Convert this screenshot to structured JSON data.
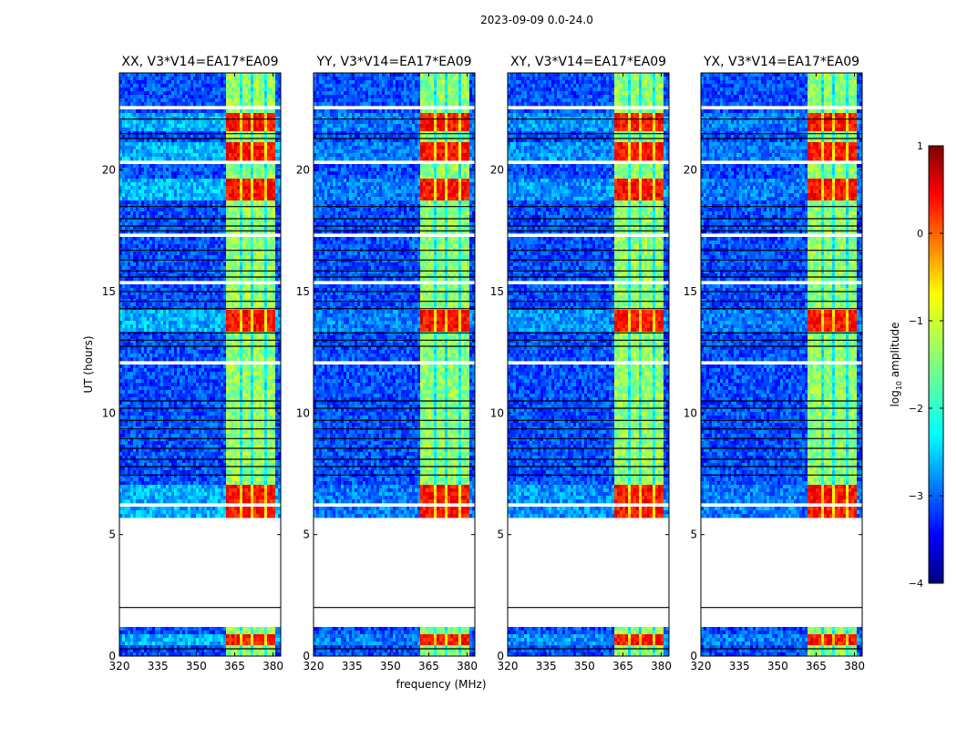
{
  "figure": {
    "suptitle": "2023-09-09 0.0-24.0"
  },
  "chart_data": {
    "type": "heatmap",
    "title": "2023-09-09 0.0-24.0",
    "xlabel": "frequency (MHz)",
    "ylabel": "UT (hours)",
    "xlim": [
      320,
      383
    ],
    "ylim": [
      0,
      24
    ],
    "xticks": [
      320,
      335,
      350,
      365,
      380
    ],
    "yticks": [
      0,
      5,
      10,
      15,
      20
    ],
    "panels": [
      {
        "name": "XX, V3*V14=EA17*EA09",
        "rfi_strength": 1.0,
        "band_strength": 0.85
      },
      {
        "name": "YY, V3*V14=EA17*EA09",
        "rfi_strength": 0.45,
        "band_strength": 0.8
      },
      {
        "name": "XY, V3*V14=EA17*EA09",
        "rfi_strength": 0.7,
        "band_strength": 0.85
      },
      {
        "name": "YX, V3*V14=EA17*EA09",
        "rfi_strength": 0.45,
        "band_strength": 0.8
      }
    ],
    "colorbar": {
      "label": "log10 amplitude",
      "label_base": "log",
      "label_sub": "10",
      "label_rest": " amplitude",
      "min": -4,
      "max": 1,
      "ticks": [
        -4,
        -3,
        -2,
        -1,
        0,
        1
      ],
      "tick_labels": [
        "−4",
        "−3",
        "−2",
        "−1",
        "0",
        "1"
      ],
      "colormap": "jet"
    },
    "band": {
      "freq_start_mhz": 362,
      "freq_end_mhz": 381,
      "channel_edges_mhz": [
        362,
        366.5,
        367.8,
        371.5,
        372.8,
        376.5,
        377.8,
        381
      ]
    },
    "flagged_gaps_hours": [
      [
        1.2,
        1.4
      ],
      [
        0.85,
        0.95
      ],
      [
        5.65,
        5.75
      ],
      [
        12.05,
        12.2
      ],
      [
        22.5,
        22.65
      ],
      [
        17.2,
        17.35
      ],
      [
        7.0,
        7.1
      ],
      [
        6.2,
        6.3
      ],
      [
        15.3,
        15.4
      ],
      [
        20.3,
        20.35
      ]
    ],
    "no_data_hours": [
      1.4,
      5.65
    ],
    "strong_rfi_hours": [
      [
        0.5,
        0.9
      ],
      [
        5.7,
        7.0
      ],
      [
        13.4,
        14.2
      ],
      [
        18.8,
        19.6
      ],
      [
        20.2,
        21.2
      ],
      [
        21.6,
        22.3
      ]
    ],
    "dark_lines_hours": [
      0.3,
      2.0,
      7.45,
      7.8,
      8.1,
      8.55,
      8.95,
      9.35,
      9.7,
      10.2,
      10.5,
      12.75,
      13.0,
      13.3,
      14.3,
      14.6,
      15.0,
      15.6,
      15.85,
      16.3,
      16.7,
      17.5,
      17.7,
      18.0,
      18.5,
      21.3,
      21.5,
      22.1
    ]
  }
}
